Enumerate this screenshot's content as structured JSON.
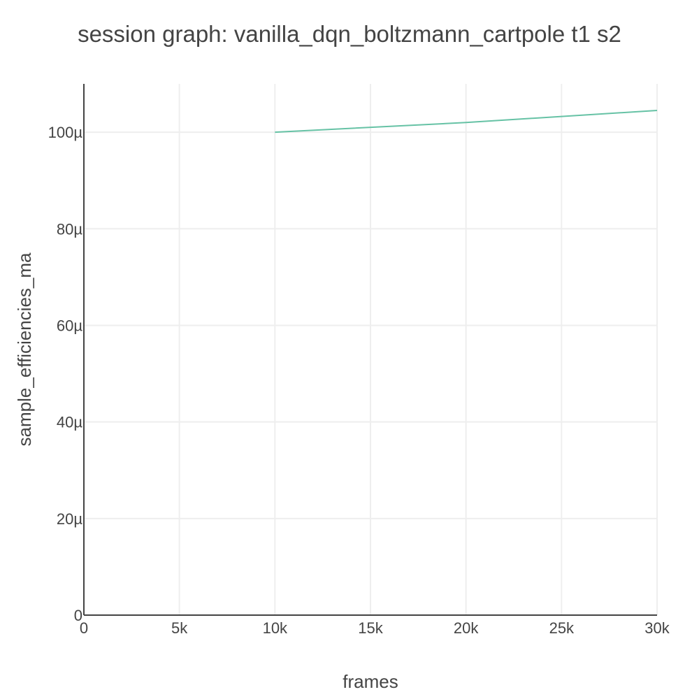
{
  "chart_data": {
    "type": "line",
    "title": "session graph: vanilla_dqn_boltzmann_cartpole t1 s2",
    "xlabel": "frames",
    "ylabel": "sample_efficiencies_ma",
    "xlim": [
      0,
      30000
    ],
    "ylim": [
      0,
      0.00011
    ],
    "x_ticks": [
      0,
      5000,
      10000,
      15000,
      20000,
      25000,
      30000
    ],
    "x_tick_labels": [
      "0",
      "5k",
      "10k",
      "15k",
      "20k",
      "25k",
      "30k"
    ],
    "y_ticks": [
      0,
      2e-05,
      4e-05,
      6e-05,
      8e-05,
      0.0001
    ],
    "y_tick_labels": [
      "0",
      "20µ",
      "40µ",
      "60µ",
      "80µ",
      "100µ"
    ],
    "grid": true,
    "legend": "none",
    "series": [
      {
        "color": "#66c2a5",
        "x": [
          10000,
          20000,
          30000
        ],
        "y": [
          0.0001,
          0.000102,
          0.0001045
        ]
      }
    ]
  }
}
